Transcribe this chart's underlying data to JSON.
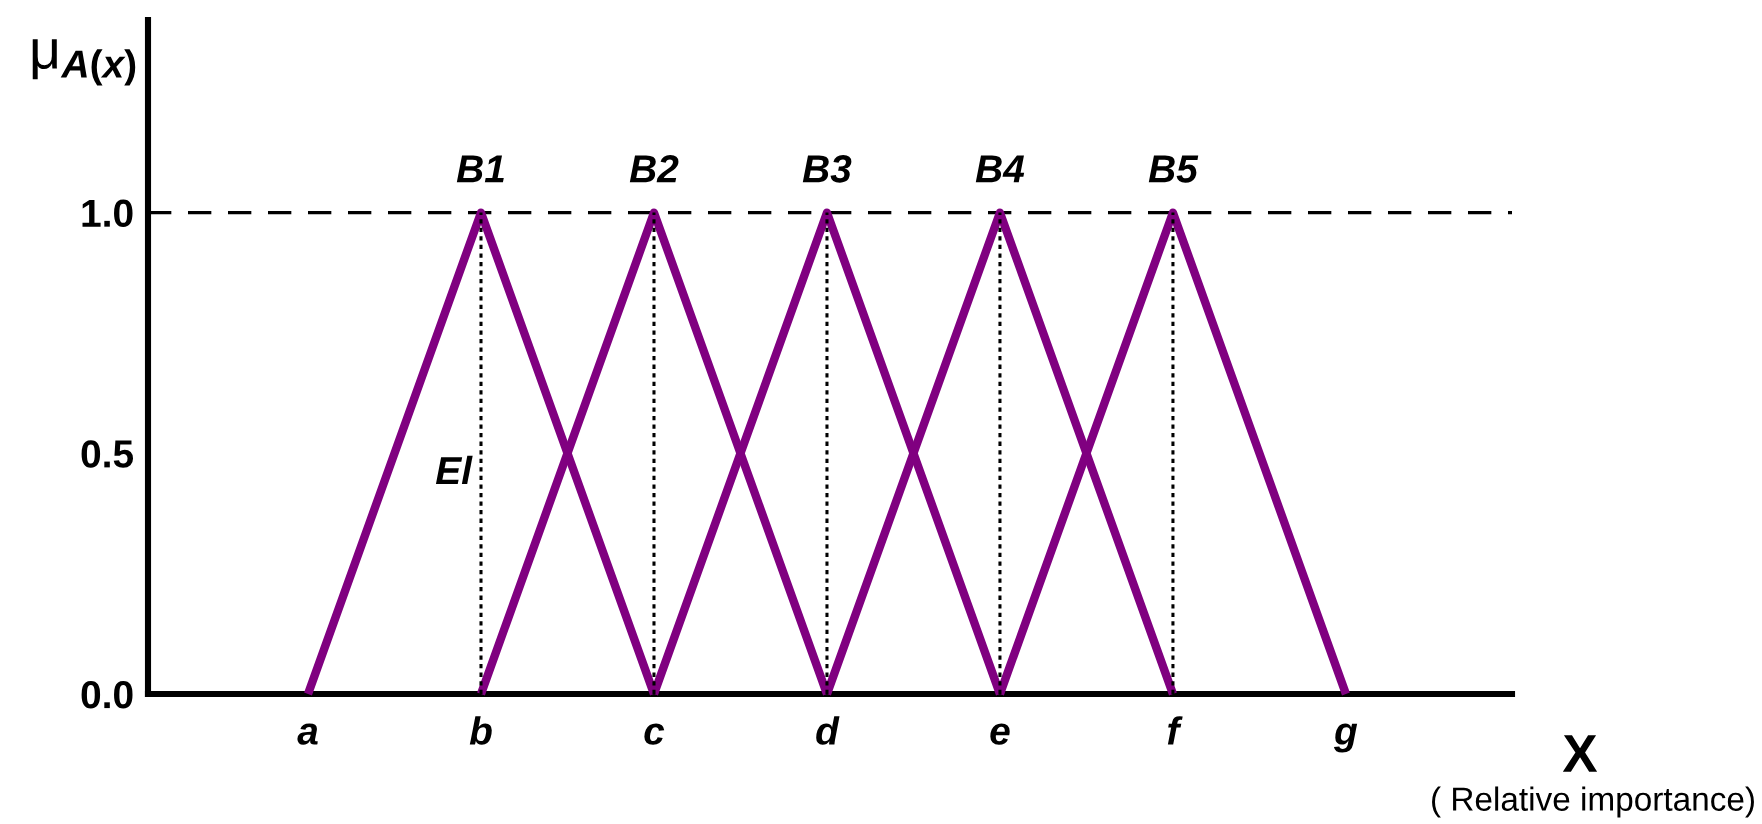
{
  "chart_data": {
    "type": "line",
    "ylabel": "μ$_{A(x)}$",
    "xlabel": "X",
    "categories": [
      "a",
      "b",
      "c",
      "d",
      "e",
      "f",
      "g"
    ],
    "series": [
      {
        "name": "B1",
        "color": "#800080",
        "values": [
          0,
          1,
          0,
          null,
          null,
          null,
          null
        ]
      },
      {
        "name": "B2",
        "color": "#800080",
        "values": [
          null,
          0,
          1,
          0,
          null,
          null,
          null
        ]
      },
      {
        "name": "B3",
        "color": "#800080",
        "values": [
          null,
          null,
          0,
          1,
          0,
          null,
          null
        ]
      },
      {
        "name": "B4",
        "color": "#800080",
        "values": [
          null,
          null,
          null,
          0,
          1,
          0,
          null
        ]
      },
      {
        "name": "B5",
        "color": "#800080",
        "values": [
          null,
          null,
          null,
          null,
          0,
          1,
          0
        ]
      }
    ],
    "ylim": [
      0,
      1.4
    ],
    "yticks": [
      {
        "value": 0,
        "label": "0.0"
      },
      0.5,
      {
        "value": 1,
        "label": "1.0"
      }
    ],
    "ref_lines": [
      {
        "axis": "y",
        "value": 1,
        "color": "#000000",
        "line_style": "dashed"
      },
      {
        "axis": "x",
        "value": "b",
        "color": "#000000",
        "line_style": "dotted"
      },
      {
        "axis": "x",
        "value": "c",
        "color": "#000000",
        "line_style": "dotted"
      },
      {
        "axis": "x",
        "value": "d",
        "color": "#000000",
        "line_style": "dotted"
      },
      {
        "axis": "x",
        "value": "e",
        "color": "#000000",
        "line_style": "dotted"
      },
      {
        "axis": "x",
        "value": "f",
        "color": "#000000",
        "line_style": "dotted"
      }
    ],
    "annotations": [
      "El",
      "( Relative importance)"
    ],
    "line_style": "solid",
    "grid": false
  }
}
